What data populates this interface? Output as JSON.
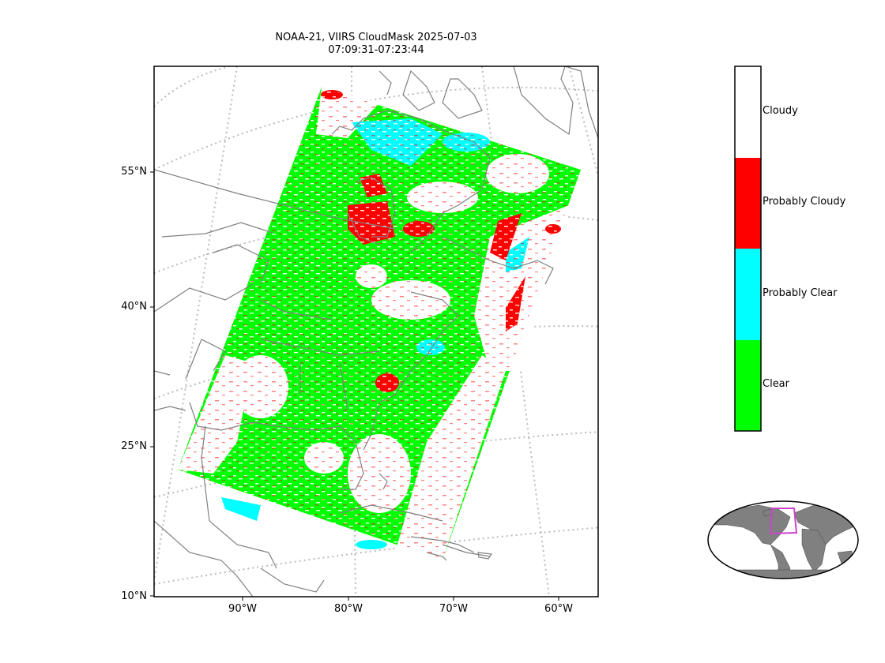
{
  "title": {
    "line1": "NOAA-21, VIIRS CloudMask 2025-07-03",
    "line2": "07:09:31-07:23:44"
  },
  "map": {
    "lat_labels": [
      "55°N",
      "40°N",
      "25°N",
      "10°N"
    ],
    "lon_labels": [
      "90°W",
      "80°W",
      "70°W",
      "60°W"
    ]
  },
  "legend": {
    "categories": [
      {
        "label": "Cloudy",
        "color": "#ffffff"
      },
      {
        "label": "Probably Cloudy",
        "color": "#ff0000"
      },
      {
        "label": "Probably Clear",
        "color": "#00ffff"
      },
      {
        "label": "Clear",
        "color": "#00ff00"
      }
    ]
  },
  "colors": {
    "coastline": "#808080",
    "gridline": "#bbbbbb",
    "inset_land": "#808080",
    "inset_box": "#cc44cc"
  }
}
